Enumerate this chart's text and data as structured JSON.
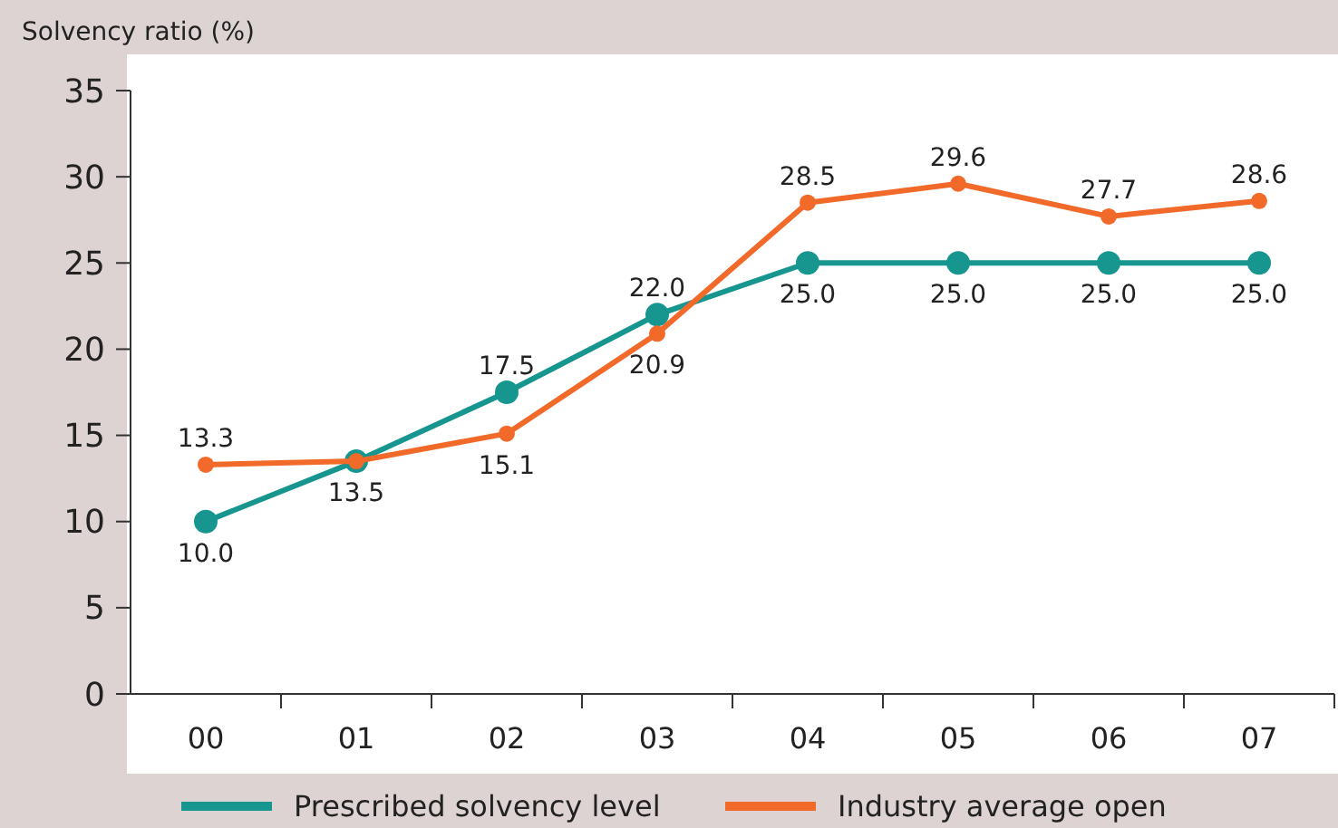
{
  "chart_data": {
    "type": "line",
    "ylabel": "Solvency ratio (%)",
    "categories": [
      "00",
      "01",
      "02",
      "03",
      "04",
      "05",
      "06",
      "07"
    ],
    "series": [
      {
        "name": "Prescribed solvency level",
        "color": "#16968f",
        "values": [
          10.0,
          13.5,
          17.5,
          22.0,
          25.0,
          25.0,
          25.0,
          25.0
        ],
        "value_labels": [
          "10.0",
          null,
          "17.5",
          "22.0",
          "25.0",
          "25.0",
          "25.0",
          "25.0"
        ]
      },
      {
        "name": "Industry average open",
        "color": "#f26a2a",
        "values": [
          13.3,
          13.5,
          15.1,
          20.9,
          28.5,
          29.6,
          27.7,
          28.6
        ],
        "value_labels": [
          "13.3",
          "13.5",
          "15.1",
          "20.9",
          "28.5",
          "29.6",
          "27.7",
          "28.6"
        ]
      }
    ],
    "ylim": [
      0,
      35
    ],
    "yticks": [
      0,
      5,
      10,
      15,
      20,
      25,
      30,
      35
    ],
    "marker": "circle",
    "line_style": "solid",
    "legend": "bottom"
  }
}
